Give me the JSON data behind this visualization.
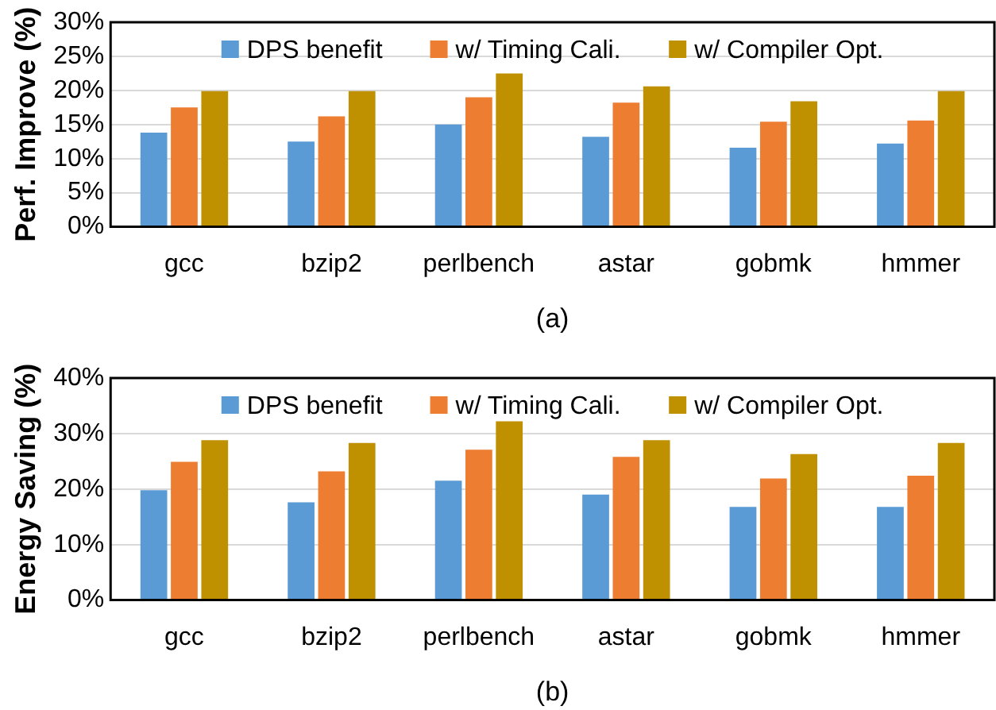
{
  "chart_data": [
    {
      "type": "bar",
      "ylabel": "Perf. Improve (%)",
      "categories": [
        "gcc",
        "bzip2",
        "perlbench",
        "astar",
        "gobmk",
        "hmmer"
      ],
      "series": [
        {
          "name": "DPS benefit",
          "color": "#5b9bd5",
          "values": [
            13.8,
            12.5,
            15.0,
            13.2,
            11.6,
            12.2
          ]
        },
        {
          "name": "w/ Timing Cali.",
          "color": "#ed7d31",
          "values": [
            17.5,
            16.2,
            19.0,
            18.2,
            15.4,
            15.6
          ]
        },
        {
          "name": "w/ Compiler Opt.",
          "color": "#bf9000",
          "values": [
            19.9,
            19.9,
            22.5,
            20.6,
            18.4,
            19.9
          ]
        }
      ],
      "ylim": [
        0,
        30
      ],
      "yticks": [
        {
          "value": 0,
          "label": "0%"
        },
        {
          "value": 5,
          "label": "5%"
        },
        {
          "value": 10,
          "label": "10%"
        },
        {
          "value": 15,
          "label": "15%"
        },
        {
          "value": 20,
          "label": "20%"
        },
        {
          "value": 25,
          "label": "25%"
        },
        {
          "value": 30,
          "label": "30%"
        }
      ],
      "grid": "y",
      "legend": "top",
      "annotations": [
        "(a)"
      ]
    },
    {
      "type": "bar",
      "ylabel": "Energy Saving (%)",
      "categories": [
        "gcc",
        "bzip2",
        "perlbench",
        "astar",
        "gobmk",
        "hmmer"
      ],
      "series": [
        {
          "name": "DPS benefit",
          "color": "#5b9bd5",
          "values": [
            19.8,
            17.6,
            21.5,
            19.0,
            16.8,
            16.8
          ]
        },
        {
          "name": "w/ Timing Cali.",
          "color": "#ed7d31",
          "values": [
            24.9,
            23.2,
            27.1,
            25.8,
            21.9,
            22.4
          ]
        },
        {
          "name": "w/ Compiler Opt.",
          "color": "#bf9000",
          "values": [
            28.8,
            28.3,
            32.2,
            28.8,
            26.3,
            28.3
          ]
        }
      ],
      "ylim": [
        0,
        40
      ],
      "yticks": [
        {
          "value": 0,
          "label": "0%"
        },
        {
          "value": 10,
          "label": "10%"
        },
        {
          "value": 20,
          "label": "20%"
        },
        {
          "value": 30,
          "label": "30%"
        },
        {
          "value": 40,
          "label": "40%"
        }
      ],
      "grid": "y",
      "legend": "top",
      "annotations": [
        "(b)"
      ]
    }
  ]
}
